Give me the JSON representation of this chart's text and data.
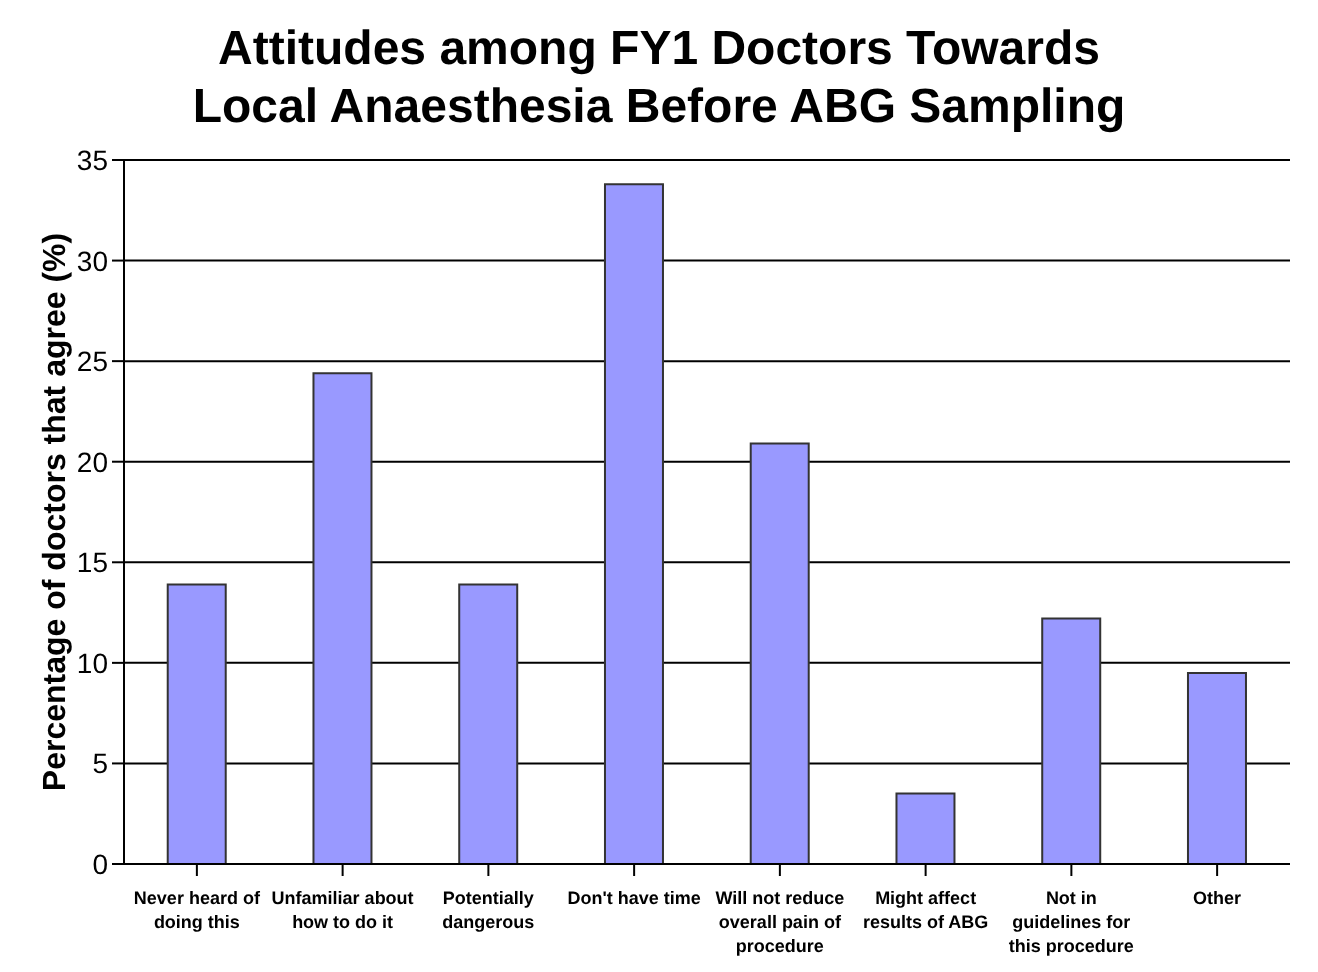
{
  "chart_data": {
    "type": "bar",
    "title": "Attitudes among FY1 Doctors Towards Local Anaesthesia Before ABG Sampling",
    "ylabel": "Percentage of doctors that agree (%)",
    "categories": [
      "Never heard of doing this",
      "Unfamiliar about how to do it",
      "Potentially dangerous",
      "Don't have time",
      "Will not reduce overall pain of procedure",
      "Might affect results of ABG",
      "Not in guidelines for this procedure",
      "Other"
    ],
    "values": [
      13.9,
      24.4,
      13.9,
      33.8,
      20.9,
      3.5,
      12.2,
      9.5
    ],
    "color": "#9999ff",
    "ylim": [
      0,
      35
    ],
    "yticks": [
      0,
      5,
      10,
      15,
      20,
      25,
      30,
      35
    ],
    "grid": "y"
  }
}
